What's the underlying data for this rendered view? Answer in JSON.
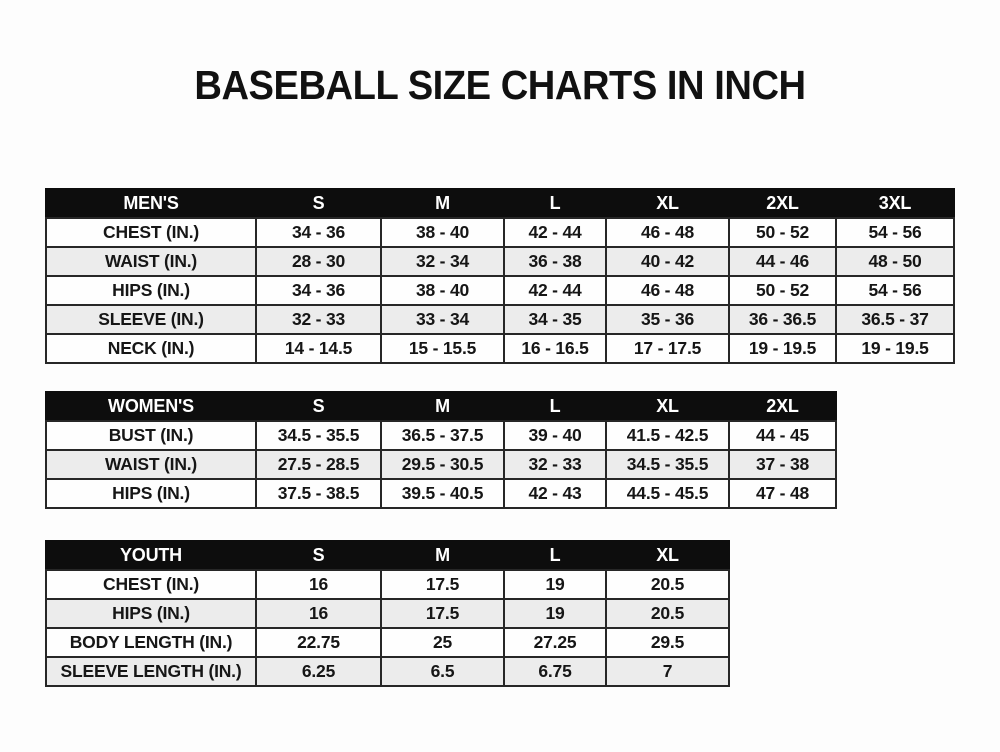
{
  "page": {
    "title": "BASEBALL SIZE CHARTS IN INCH"
  },
  "colors": {
    "page_bg": "#fdfdfd",
    "title_text": "#111111",
    "header_bg": "#0d0d0d",
    "header_text": "#ffffff",
    "row_bg": "#fefefe",
    "alt_row_bg": "#ececec",
    "border": "#272727",
    "text": "#161616"
  },
  "tables": [
    {
      "id": "mens",
      "header": [
        "MEN'S",
        "S",
        "M",
        "L",
        "XL",
        "2XL",
        "3XL"
      ],
      "rows": [
        [
          "CHEST (IN.)",
          "34 - 36",
          "38 - 40",
          "42 - 44",
          "46 - 48",
          "50 - 52",
          "54 - 56"
        ],
        [
          "WAIST (IN.)",
          "28 - 30",
          "32 - 34",
          "36 - 38",
          "40 - 42",
          "44 - 46",
          "48 - 50"
        ],
        [
          "HIPS (IN.)",
          "34 - 36",
          "38 - 40",
          "42 - 44",
          "46 - 48",
          "50 - 52",
          "54 - 56"
        ],
        [
          "SLEEVE (IN.)",
          "32 - 33",
          "33 - 34",
          "34 - 35",
          "35 - 36",
          "36 - 36.5",
          "36.5 - 37"
        ],
        [
          "NECK (IN.)",
          "14 - 14.5",
          "15 - 15.5",
          "16 - 16.5",
          "17 - 17.5",
          "19 - 19.5",
          "19 - 19.5"
        ]
      ]
    },
    {
      "id": "womens",
      "header": [
        "WOMEN'S",
        "S",
        "M",
        "L",
        "XL",
        "2XL"
      ],
      "rows": [
        [
          "BUST (IN.)",
          "34.5 - 35.5",
          "36.5 - 37.5",
          "39 - 40",
          "41.5 - 42.5",
          "44 - 45"
        ],
        [
          "WAIST (IN.)",
          "27.5 - 28.5",
          "29.5 - 30.5",
          "32 - 33",
          "34.5 - 35.5",
          "37 - 38"
        ],
        [
          "HIPS (IN.)",
          "37.5 - 38.5",
          "39.5 - 40.5",
          "42 - 43",
          "44.5 - 45.5",
          "47 - 48"
        ]
      ]
    },
    {
      "id": "youth",
      "header": [
        "YOUTH",
        "S",
        "M",
        "L",
        "XL"
      ],
      "rows": [
        [
          "CHEST (IN.)",
          "16",
          "17.5",
          "19",
          "20.5"
        ],
        [
          "HIPS (IN.)",
          "16",
          "17.5",
          "19",
          "20.5"
        ],
        [
          "BODY LENGTH (IN.)",
          "22.75",
          "25",
          "27.25",
          "29.5"
        ],
        [
          "SLEEVE LENGTH (IN.)",
          "6.25",
          "6.5",
          "6.75",
          "7"
        ]
      ]
    }
  ]
}
